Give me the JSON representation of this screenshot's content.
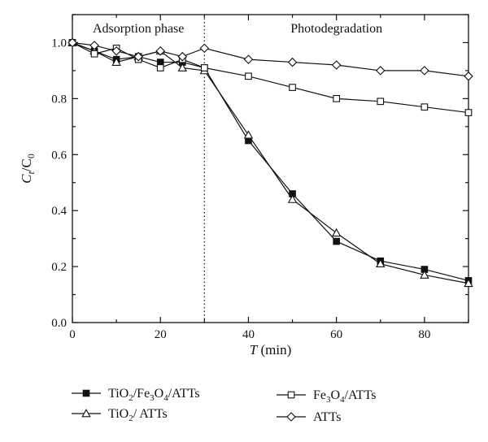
{
  "chart_data": {
    "type": "line",
    "ylabel_main": "C",
    "ylabel_sub1": "t",
    "ylabel_sep": "/C",
    "ylabel_sub2": "0",
    "xlabel_var": "T",
    "xlabel_unit": " (min)",
    "xlim": [
      0,
      90
    ],
    "ylim": [
      0,
      1.1
    ],
    "xticks": [
      0,
      20,
      40,
      60,
      80
    ],
    "yticks": [
      0.0,
      0.2,
      0.4,
      0.6,
      0.8,
      1.0
    ],
    "ytick_labels": [
      "0.0",
      "0.2",
      "0.4",
      "0.6",
      "0.8",
      "1.0"
    ],
    "grid": false,
    "divider_x": 30,
    "annotations": [
      {
        "text": "Adsorption phase",
        "x": 15
      },
      {
        "text": "Photodegradation",
        "x": 60
      }
    ],
    "legend_placement": "bottom",
    "series": [
      {
        "name_parts": [
          {
            "t": "TiO",
            "sub": false
          },
          {
            "t": "2",
            "sub": true
          },
          {
            "t": "/Fe",
            "sub": false
          },
          {
            "t": "3",
            "sub": true
          },
          {
            "t": "O",
            "sub": false
          },
          {
            "t": "4",
            "sub": true
          },
          {
            "t": "/ATTs",
            "sub": false
          }
        ],
        "marker": "square-filled",
        "x": [
          0,
          5,
          10,
          15,
          20,
          25,
          30,
          40,
          50,
          60,
          70,
          80,
          90
        ],
        "y": [
          1.0,
          0.97,
          0.94,
          0.95,
          0.93,
          0.93,
          0.91,
          0.65,
          0.46,
          0.29,
          0.22,
          0.19,
          0.15
        ]
      },
      {
        "name_parts": [
          {
            "t": "TiO",
            "sub": false
          },
          {
            "t": "2",
            "sub": true
          },
          {
            "t": "/ ATTs",
            "sub": false
          }
        ],
        "marker": "triangle-open",
        "x": [
          0,
          5,
          10,
          15,
          20,
          25,
          30,
          40,
          50,
          60,
          70,
          80,
          90
        ],
        "y": [
          1.0,
          0.97,
          0.93,
          0.95,
          0.97,
          0.91,
          0.9,
          0.67,
          0.44,
          0.32,
          0.21,
          0.17,
          0.14
        ]
      },
      {
        "name_parts": [
          {
            "t": "Fe",
            "sub": false
          },
          {
            "t": "3",
            "sub": true
          },
          {
            "t": "O",
            "sub": false
          },
          {
            "t": "4",
            "sub": true
          },
          {
            "t": "/ATTs",
            "sub": false
          }
        ],
        "marker": "square-open",
        "x": [
          0,
          5,
          10,
          15,
          20,
          25,
          30,
          40,
          50,
          60,
          70,
          80,
          90
        ],
        "y": [
          1.0,
          0.96,
          0.98,
          0.94,
          0.91,
          0.94,
          0.91,
          0.88,
          0.84,
          0.8,
          0.79,
          0.77,
          0.75
        ]
      },
      {
        "name_parts": [
          {
            "t": "ATTs",
            "sub": false
          }
        ],
        "marker": "diamond-open",
        "x": [
          0,
          5,
          10,
          15,
          20,
          25,
          30,
          40,
          50,
          60,
          70,
          80,
          90
        ],
        "y": [
          1.0,
          0.99,
          0.97,
          0.95,
          0.97,
          0.95,
          0.98,
          0.94,
          0.93,
          0.92,
          0.9,
          0.9,
          0.88
        ]
      }
    ]
  }
}
